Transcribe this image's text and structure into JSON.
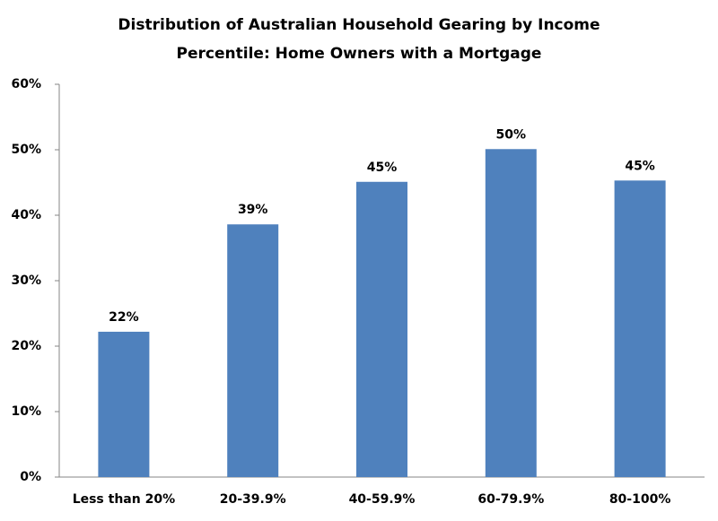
{
  "chart_data": {
    "type": "bar",
    "title": [
      "Distribution of Australian Household Gearing by Income",
      "Percentile: Home Owners with a Mortgage"
    ],
    "categories": [
      "Less than 20%",
      "20-39.9%",
      "40-59.9%",
      "60-79.9%",
      "80-100%"
    ],
    "values": [
      22.2,
      38.6,
      45.1,
      50.1,
      45.3
    ],
    "value_labels": [
      "22%",
      "39%",
      "45%",
      "50%",
      "45%"
    ],
    "color": "#4f81bd",
    "ylim": [
      0,
      60
    ],
    "yticks": [
      {
        "value": 0,
        "label": "0%"
      },
      {
        "value": 10,
        "label": "10%"
      },
      {
        "value": 20,
        "label": "20%"
      },
      {
        "value": 30,
        "label": "30%"
      },
      {
        "value": 40,
        "label": "40%"
      },
      {
        "value": 50,
        "label": "50%"
      },
      {
        "value": 60,
        "label": "60%"
      }
    ],
    "grid": false
  }
}
